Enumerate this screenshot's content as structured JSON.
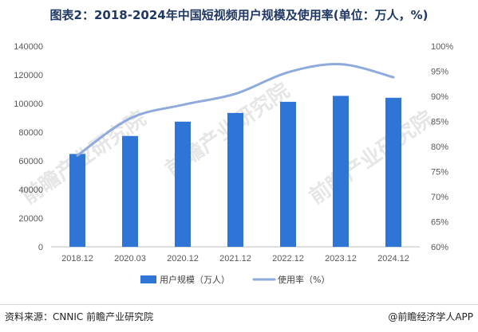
{
  "title": "图表2：2018-2024年中国短视频用户规模及使用率(单位：万人，%)",
  "source": "资料来源：CNNIC 前瞻产业研究院",
  "brand": "@前瞻经济学人APP",
  "watermark": "前瞻产业研究院",
  "chart_data": {
    "type": "bar",
    "categories": [
      "2018.12",
      "2020.03",
      "2020.12",
      "2021.12",
      "2022.12",
      "2023.12",
      "2024.12"
    ],
    "series": [
      {
        "name": "用户规模（万人）",
        "type": "bar",
        "axis": "left",
        "color": "#2e75d6",
        "values": [
          64798,
          77325,
          87335,
          93415,
          101185,
          105330,
          104000
        ]
      },
      {
        "name": "使用率（%）",
        "type": "line",
        "axis": "right",
        "color": "#8faadc",
        "values": [
          78.2,
          85.6,
          88.3,
          90.5,
          94.8,
          96.4,
          93.8
        ]
      }
    ],
    "y_left": {
      "ylim": [
        0,
        140000
      ],
      "ticks": [
        "0",
        "20000",
        "40000",
        "60000",
        "80000",
        "100000",
        "120000",
        "140000"
      ]
    },
    "y_right": {
      "ylim": [
        60,
        100
      ],
      "ticks": [
        "60%",
        "65%",
        "70%",
        "75%",
        "80%",
        "85%",
        "90%",
        "95%",
        "100%"
      ]
    },
    "grid": false,
    "legend": "bottom-center"
  }
}
